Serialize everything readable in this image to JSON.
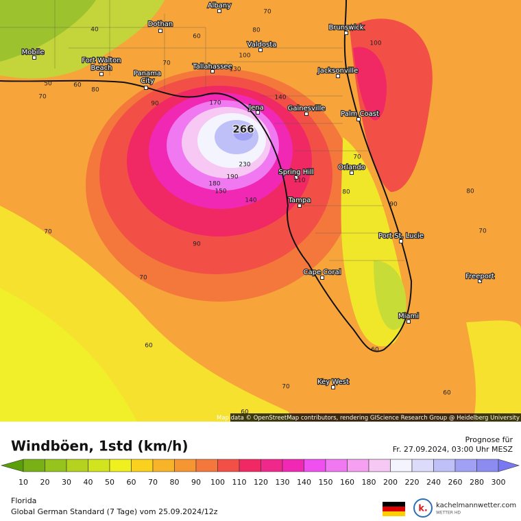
{
  "map": {
    "cities": [
      {
        "name": "Albany"
      },
      {
        "name": "Dothan"
      },
      {
        "name": "Mobile"
      },
      {
        "name": [
          "Fort Walton",
          "Beach"
        ]
      },
      {
        "name": [
          "Panama",
          "City"
        ]
      },
      {
        "name": "Tallahassee"
      },
      {
        "name": "Valdosta"
      },
      {
        "name": "Brunswick"
      },
      {
        "name": "Jacksonville"
      },
      {
        "name": "Jena"
      },
      {
        "name": "Gainesville"
      },
      {
        "name": "Palm Coast"
      },
      {
        "name": "Spring Hill"
      },
      {
        "name": "Orlando"
      },
      {
        "name": "Tampa"
      },
      {
        "name": "Port St. Lucie"
      },
      {
        "name": "Cape Coral"
      },
      {
        "name": "Freeport"
      },
      {
        "name": "Miami"
      },
      {
        "name": "Key West"
      }
    ],
    "contour_labels": [
      40,
      70,
      80,
      60,
      100,
      100,
      70,
      50,
      60,
      80,
      70,
      90,
      170,
      140,
      130,
      230,
      190,
      180,
      150,
      140,
      110,
      70,
      80,
      90,
      80,
      70,
      70,
      90,
      70,
      60,
      60,
      70,
      60,
      60
    ],
    "max_value": 266,
    "attribution": "Map data © OpenStreetMap contributors, rendering GIScience Research Group @ Heidelberg University"
  },
  "legend": {
    "title": "Windböen, 1std (km/h)",
    "forecast_label": "Prognose für",
    "forecast_time": "Fr. 27.09.2024, 03:00 Uhr MESZ",
    "labels": [
      10,
      20,
      30,
      40,
      50,
      60,
      70,
      80,
      90,
      100,
      110,
      120,
      130,
      140,
      150,
      160,
      180,
      200,
      220,
      240,
      260,
      280,
      300
    ],
    "colors": [
      "#5a9e0a",
      "#78b016",
      "#96c41c",
      "#b4d21e",
      "#d2e41e",
      "#f0f01e",
      "#fad21e",
      "#f8b428",
      "#f69632",
      "#f4783c",
      "#f25046",
      "#f02864",
      "#f0288c",
      "#f028b4",
      "#f050f0",
      "#f078f0",
      "#f5a0f0",
      "#f8c8f5",
      "#f4f4ff",
      "#dcdcfa",
      "#c0c0f8",
      "#a0a0f5",
      "#8c8cf0",
      "#7878f0"
    ]
  },
  "footer": {
    "region": "Florida",
    "model": "Global German Standard (7 Tage) vom 25.09.2024/12z",
    "logo_mark": "k.",
    "site": "kachelmannwetter.com",
    "tagline": "WETTER HD"
  }
}
